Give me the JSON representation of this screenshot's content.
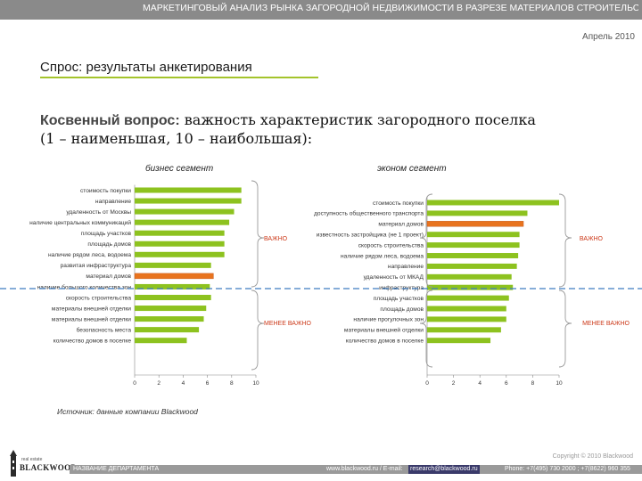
{
  "header": {
    "title": "МАРКЕТИНГОВЫЙ АНАЛИЗ РЫНКА ЗАГОРОДНОЙ НЕДВИЖИМОСТИ В РАЗРЕЗЕ МАТЕРИАЛОВ СТРОИТЕЛЬСТВА",
    "date": "Апрель 2010"
  },
  "section_title": "Спрос: результаты анкетирования",
  "question": {
    "lead": "Косвенный вопрос:",
    "text": " важность характеристик загородного поселка",
    "scale": "(1 – наименьшая, 10 – наибольшая):"
  },
  "zones": {
    "important": "ВАЖНО",
    "less_important": "МЕНЕЕ ВАЖНО"
  },
  "colors": {
    "bar": "#8dc21f",
    "bar_highlight": "#e8731e",
    "divider": "#3f7cc0",
    "topbar": "#8a8a8a",
    "accent": "#a4c42b"
  },
  "chart_data": [
    {
      "type": "bar",
      "orientation": "horizontal",
      "title": "бизнес сегмент",
      "xlim": [
        0,
        10
      ],
      "ticks": [
        "0",
        "2",
        "4",
        "6",
        "8",
        "10"
      ],
      "categories": [
        "стоимость покупки",
        "направление",
        "удаленность от Москвы",
        "наличие центральных коммуникаций",
        "площадь участков",
        "площадь домов",
        "наличие рядом леса, водоема",
        "развитая инфраструктура",
        "материал домов",
        "наличие большого количества зон",
        "скорость строительства",
        "материалы внешней отделки",
        "материалы внешней отделки",
        "безопасность места",
        "количество домов в поселке"
      ],
      "values": [
        8.8,
        8.8,
        8.2,
        7.8,
        7.4,
        7.4,
        7.4,
        6.3,
        6.5,
        6.2,
        6.3,
        5.9,
        5.7,
        5.3,
        4.3
      ],
      "highlight": [
        8
      ]
    },
    {
      "type": "bar",
      "orientation": "horizontal",
      "title": "эконом сегмент",
      "xlim": [
        0,
        10
      ],
      "ticks": [
        "0",
        "2",
        "4",
        "6",
        "8",
        "10"
      ],
      "categories": [
        "стоимость покупки",
        "доступность общественного транспорта",
        "материал домов",
        "известность застройщика (не 1 проект)",
        "скорость строительства",
        "наличие рядом леса, водоема",
        "направление",
        "удаленность от МКАД",
        "инфраструктура",
        "площадь участков",
        "площадь домов",
        "наличие прогулочных зон",
        "материалы внешней отделки",
        "количество домов в поселке"
      ],
      "values": [
        10.0,
        7.6,
        7.3,
        7.0,
        7.0,
        6.9,
        6.8,
        6.4,
        6.5,
        6.2,
        6.0,
        6.0,
        5.6,
        4.8
      ],
      "highlight": [
        2
      ]
    }
  ],
  "source": "Источник: данные компании Blackwood",
  "copyright": "Copyright © 2010 Blackwood",
  "footer": {
    "logo": "BLACKWOOD",
    "logo_sub": "real estate",
    "department": "НАЗВАНИЕ ДЕПАРТАМЕНТА",
    "web": "www.blackwood.ru  /  E-mail:",
    "email": "research@blackwood.ru",
    "phone": "Phone: +7(495) 730 2000 ;  +7(8622) 960 355"
  }
}
